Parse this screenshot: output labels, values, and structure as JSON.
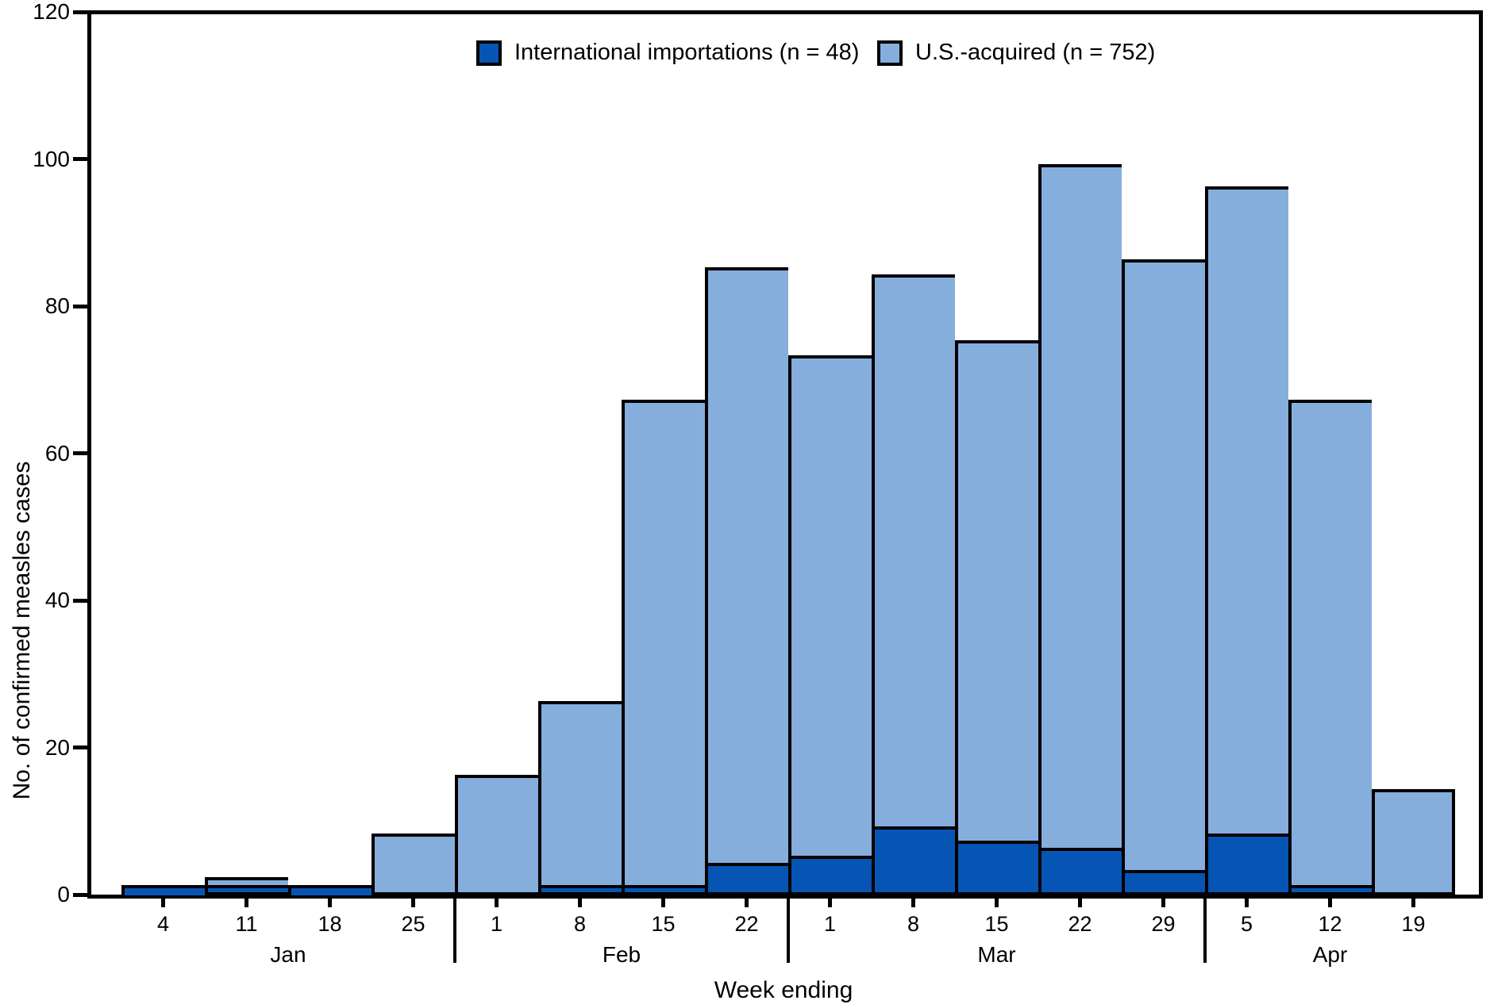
{
  "chart_data": {
    "type": "bar",
    "stacked": true,
    "xlabel": "Week ending",
    "ylabel": "No. of confirmed measles cases",
    "ylim": [
      0,
      120
    ],
    "yticks": [
      0,
      20,
      40,
      60,
      80,
      100,
      120
    ],
    "grid": false,
    "legend_position": "top",
    "legend": [
      {
        "label": "International importations (n = 48)",
        "color": "#0655b5"
      },
      {
        "label": "U.S.-acquired (n = 752)",
        "color": "#86aedd"
      }
    ],
    "categories": [
      "4",
      "11",
      "18",
      "25",
      "1",
      "8",
      "15",
      "22",
      "1",
      "8",
      "15",
      "22",
      "29",
      "5",
      "12",
      "19"
    ],
    "month_groups": [
      {
        "label": "Jan",
        "count": 4
      },
      {
        "label": "Feb",
        "count": 4
      },
      {
        "label": "Mar",
        "count": 5
      },
      {
        "label": "Apr",
        "count": 3
      }
    ],
    "series": [
      {
        "name": "International importations",
        "color": "#0655b5",
        "values": [
          1,
          1,
          1,
          0,
          0,
          1,
          1,
          4,
          5,
          9,
          7,
          6,
          3,
          8,
          1,
          0
        ]
      },
      {
        "name": "U.S.-acquired",
        "color": "#86aedd",
        "values": [
          0,
          1,
          0,
          8,
          16,
          25,
          66,
          81,
          68,
          75,
          68,
          93,
          83,
          88,
          66,
          14
        ]
      }
    ],
    "totals": [
      1,
      2,
      1,
      8,
      16,
      26,
      67,
      85,
      73,
      84,
      75,
      99,
      86,
      96,
      67,
      14
    ]
  }
}
